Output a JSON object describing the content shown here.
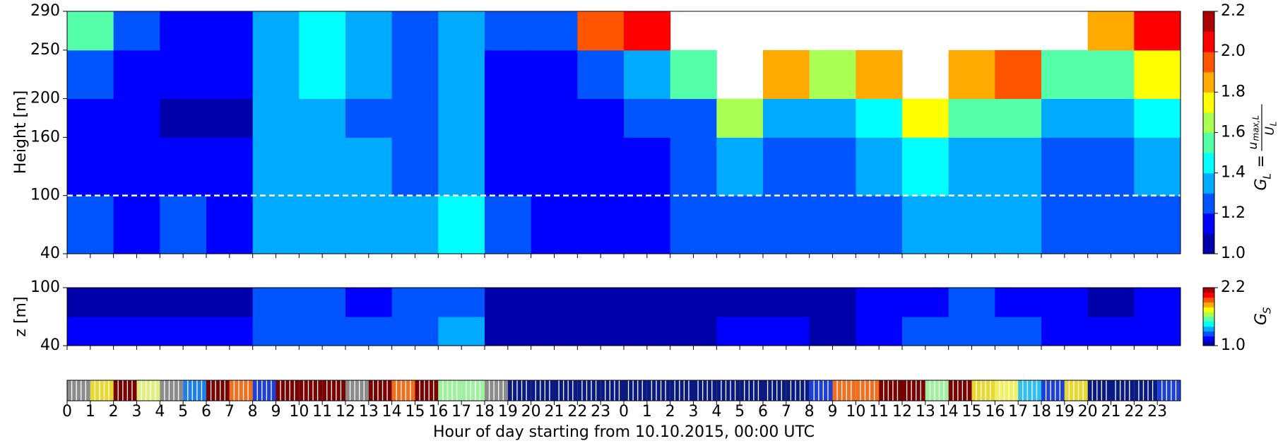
{
  "chart_data": [
    {
      "type": "contour",
      "ylabel": "Height [m]",
      "xlim": [
        0,
        48
      ],
      "xticks": [
        0,
        1,
        2,
        3,
        4,
        5,
        6,
        7,
        8,
        9,
        10,
        11,
        12,
        13,
        14,
        15,
        16,
        17,
        18,
        19,
        20,
        21,
        22,
        23,
        24,
        25,
        26,
        27,
        28,
        29,
        30,
        31,
        32,
        33,
        34,
        35,
        36,
        37,
        38,
        39,
        40,
        41,
        42,
        43,
        44,
        45,
        46,
        47
      ],
      "ylim": [
        40,
        290
      ],
      "yticks": [
        40,
        100,
        160,
        200,
        250,
        290
      ],
      "x_bins": [
        0,
        2,
        4,
        6,
        8,
        10,
        12,
        14,
        16,
        18,
        20,
        22,
        24,
        26,
        28,
        30,
        32,
        34,
        36,
        38,
        40,
        42,
        44,
        46,
        48
      ],
      "y_bins": [
        40,
        100,
        160,
        200,
        250,
        290
      ],
      "values": [
        [
          1.2,
          1.15,
          1.2,
          1.15,
          1.35,
          1.35,
          1.3,
          1.3,
          1.4,
          1.2,
          1.15,
          1.15,
          1.15,
          1.2,
          1.25,
          1.2,
          1.2,
          1.25,
          1.35,
          1.35,
          1.3,
          1.2,
          1.2,
          1.25
        ],
        [
          1.15,
          1.1,
          1.1,
          1.1,
          1.3,
          1.35,
          1.3,
          1.25,
          1.3,
          1.1,
          1.1,
          1.1,
          1.15,
          1.2,
          1.3,
          1.25,
          1.25,
          1.3,
          1.4,
          1.35,
          1.3,
          1.25,
          1.2,
          1.3
        ],
        [
          1.15,
          1.1,
          1.05,
          1.05,
          1.3,
          1.35,
          1.25,
          1.2,
          1.3,
          1.1,
          1.1,
          1.1,
          1.2,
          1.25,
          1.6,
          1.35,
          1.35,
          1.4,
          1.7,
          1.5,
          1.5,
          1.3,
          1.3,
          1.4
        ],
        [
          1.2,
          1.15,
          1.1,
          1.1,
          1.35,
          1.4,
          1.3,
          1.2,
          1.3,
          1.15,
          1.15,
          1.2,
          1.3,
          1.5,
          null,
          1.8,
          1.6,
          1.8,
          null,
          1.8,
          1.9,
          1.5,
          1.5,
          1.7
        ],
        [
          1.5,
          1.2,
          1.15,
          1.15,
          1.35,
          1.4,
          1.3,
          1.25,
          1.3,
          1.2,
          1.2,
          1.9,
          2.0,
          null,
          null,
          null,
          null,
          null,
          null,
          null,
          null,
          null,
          1.8,
          2.0
        ]
      ],
      "levels": [
        1.0,
        1.1,
        1.2,
        1.3,
        1.4,
        1.5,
        1.6,
        1.7,
        1.8,
        1.9,
        2.0,
        2.1,
        2.2
      ],
      "cticks": [
        {
          "value": 1.0,
          "label": "1.0"
        },
        {
          "value": 1.2,
          "label": "1.2"
        },
        {
          "value": 1.4,
          "label": "1.4"
        },
        {
          "value": 1.6,
          "label": "1.6"
        },
        {
          "value": 1.8,
          "label": "1.8"
        },
        {
          "value": 2.0,
          "label": "2.0"
        },
        {
          "value": 2.2,
          "label": "2.2"
        }
      ],
      "colorbar_label": [
        "G",
        "L",
        "=",
        "u",
        "max,L",
        "U",
        "L"
      ],
      "hline": 100
    },
    {
      "type": "contour",
      "ylabel": "z [m]",
      "xlim": [
        0,
        48
      ],
      "xticks": [
        0,
        1,
        2,
        3,
        4,
        5,
        6,
        7,
        8,
        9,
        10,
        11,
        12,
        13,
        14,
        15,
        16,
        17,
        18,
        19,
        20,
        21,
        22,
        23,
        24,
        25,
        26,
        27,
        28,
        29,
        30,
        31,
        32,
        33,
        34,
        35,
        36,
        37,
        38,
        39,
        40,
        41,
        42,
        43,
        44,
        45,
        46,
        47
      ],
      "ylim": [
        40,
        100
      ],
      "yticks": [
        40,
        100
      ],
      "x_bins": [
        0,
        2,
        4,
        6,
        8,
        10,
        12,
        14,
        16,
        18,
        20,
        22,
        24,
        26,
        28,
        30,
        32,
        34,
        36,
        38,
        40,
        42,
        44,
        46,
        48
      ],
      "y_bins": [
        40,
        70,
        100
      ],
      "values": [
        [
          1.1,
          1.1,
          1.1,
          1.1,
          1.25,
          1.25,
          1.2,
          1.25,
          1.3,
          1.05,
          1.05,
          1.05,
          1.05,
          1.05,
          1.1,
          1.1,
          1.05,
          1.15,
          1.25,
          1.25,
          1.2,
          1.15,
          1.1,
          1.1
        ],
        [
          1.05,
          1.05,
          1.05,
          1.05,
          1.2,
          1.2,
          1.15,
          1.2,
          1.2,
          1.03,
          1.03,
          1.03,
          1.03,
          1.03,
          1.05,
          1.05,
          1.03,
          1.1,
          1.15,
          1.2,
          1.15,
          1.1,
          1.05,
          1.1
        ]
      ],
      "levels": [
        1.0,
        1.1,
        1.2,
        1.3,
        1.4,
        1.5,
        1.6,
        1.7,
        1.8,
        1.9,
        2.0,
        2.1,
        2.2
      ],
      "cticks": [
        {
          "value": 1.0,
          "label": "1.0"
        },
        {
          "value": 2.2,
          "label": "2.2"
        }
      ],
      "colorbar_label": [
        "G",
        "S"
      ]
    },
    {
      "type": "strip",
      "xlabel": "Hour of day starting from 10.10.2015, 00:00 UTC",
      "xlim": [
        0,
        48
      ],
      "xticks": [
        0,
        1,
        2,
        3,
        4,
        5,
        6,
        7,
        8,
        9,
        10,
        11,
        12,
        13,
        14,
        15,
        16,
        17,
        18,
        19,
        20,
        21,
        22,
        23,
        {
          "value": 24,
          "label": "0"
        },
        {
          "value": 25,
          "label": "1"
        },
        {
          "value": 26,
          "label": "2"
        },
        {
          "value": 27,
          "label": "3"
        },
        {
          "value": 28,
          "label": "4"
        },
        {
          "value": 29,
          "label": "5"
        },
        {
          "value": 30,
          "label": "6"
        },
        {
          "value": 31,
          "label": "7"
        },
        {
          "value": 32,
          "label": "8"
        },
        {
          "value": 33,
          "label": "9"
        },
        {
          "value": 34,
          "label": "10"
        },
        {
          "value": 35,
          "label": "11"
        },
        {
          "value": 36,
          "label": "12"
        },
        {
          "value": 37,
          "label": "13"
        },
        {
          "value": 38,
          "label": "14"
        },
        {
          "value": 39,
          "label": "15"
        },
        {
          "value": 40,
          "label": "16"
        },
        {
          "value": 41,
          "label": "17"
        },
        {
          "value": 42,
          "label": "18"
        },
        {
          "value": 43,
          "label": "19"
        },
        {
          "value": 44,
          "label": "20"
        },
        {
          "value": 45,
          "label": "21"
        },
        {
          "value": 46,
          "label": "22"
        },
        {
          "value": 47,
          "label": "23"
        }
      ],
      "colors": [
        "#8c8c8c",
        "#e8d832",
        "#7a0000",
        "#e0f080",
        "#8c8c8c",
        "#1e7fe8",
        "#7a0000",
        "#f07020",
        "#1e40d8",
        "#7a0000",
        "#7a0000",
        "#7a0000",
        "#8c8c8c",
        "#7a0000",
        "#f07020",
        "#7a0000",
        "#a0f0a0",
        "#a0f0a0",
        "#8c8c8c",
        "#0a1a80",
        "#0a1a80",
        "#0a1a80",
        "#0a1a80",
        "#0a1a80",
        "#0a1a80",
        "#0a1a80",
        "#0a1a80",
        "#0a1a80",
        "#0a1a80",
        "#0a1a80",
        "#0a1a80",
        "#0a1a80",
        "#1e40d8",
        "#f07020",
        "#f07020",
        "#7a0000",
        "#7a0000",
        "#a0f0a0",
        "#7a0000",
        "#e8d832",
        "#f0f060",
        "#30c0f0",
        "#1e40d8",
        "#e8d832",
        "#0a1a80",
        "#0a1a80",
        "#0a1a80",
        "#1e40d8"
      ]
    }
  ]
}
